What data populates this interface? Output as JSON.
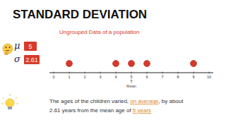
{
  "chart_data": {
    "type": "strip",
    "title": "STANDARD DEVIATION",
    "subtitle": "Ungrouped Data of a population",
    "values": [
      1,
      4,
      5,
      6,
      9
    ],
    "color": "#d8392b",
    "marker": "circle",
    "xlim": [
      0,
      10
    ],
    "xticks": [
      0,
      1,
      2,
      3,
      4,
      5,
      6,
      7,
      8,
      9,
      10
    ],
    "tick_labels": "x",
    "annotations": [
      {
        "text": "Mean",
        "x": 5
      }
    ],
    "mu": {
      "symbol": "μ",
      "value": 5
    },
    "sigma": {
      "symbol": "σ",
      "value": 2.61
    },
    "note": [
      [
        "The ages of the children varied, ",
        "on average",
        ", by about"
      ],
      [
        "2.61 years from the mean age of ",
        "5 years"
      ]
    ]
  }
}
